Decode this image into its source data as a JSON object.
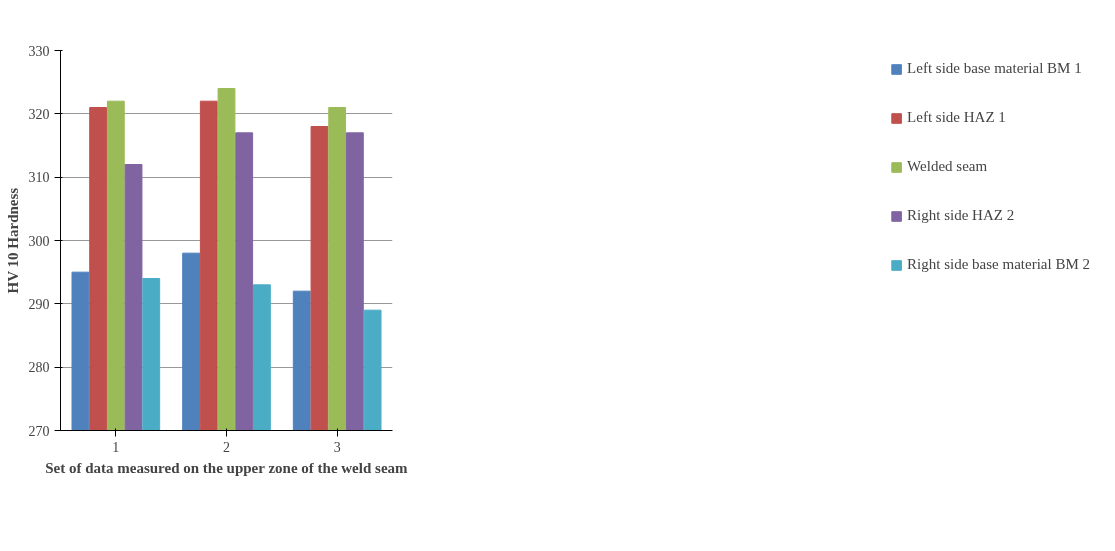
{
  "chart_data": {
    "type": "bar",
    "xlabel": "Set of data measured on the upper zone of the weld seam",
    "ylabel": "HV 10 Hardness",
    "categories": [
      "1",
      "2",
      "3"
    ],
    "series": [
      {
        "name": "Left side base material BM 1",
        "color": "#4f81bd",
        "values": [
          295,
          298,
          292
        ]
      },
      {
        "name": "Left side HAZ 1",
        "color": "#c0504d",
        "values": [
          321,
          322,
          318
        ]
      },
      {
        "name": "Welded seam",
        "color": "#9bbb59",
        "values": [
          322,
          324,
          321
        ]
      },
      {
        "name": "Right side HAZ 2",
        "color": "#8064a2",
        "values": [
          312,
          317,
          317
        ]
      },
      {
        "name": "Right side base material BM 2",
        "color": "#4bacc6",
        "values": [
          294,
          293,
          289
        ]
      }
    ],
    "ylim": [
      270,
      330
    ],
    "yticks": [
      270,
      280,
      290,
      300,
      310,
      320,
      330
    ],
    "grid": "y",
    "legend": "right"
  }
}
